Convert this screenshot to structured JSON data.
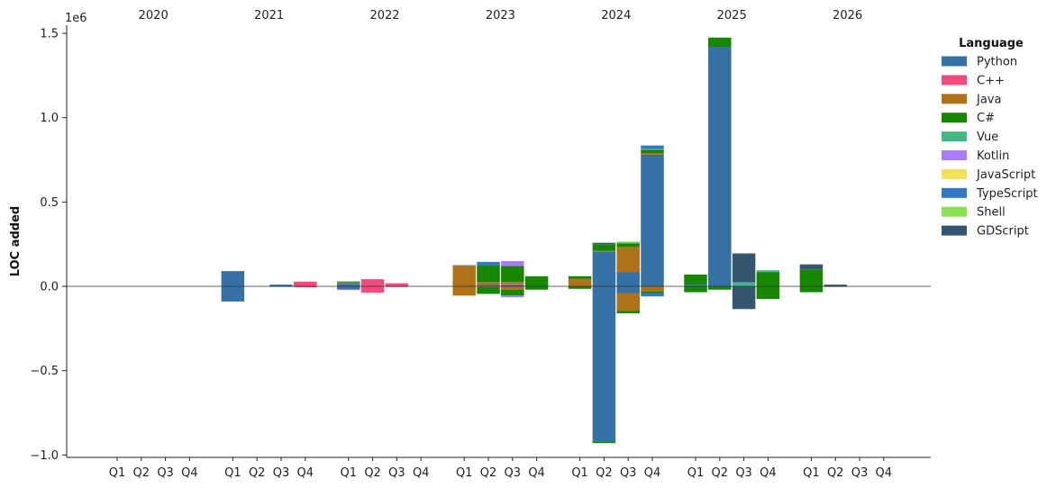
{
  "chart_data": {
    "type": "bar",
    "stacked": true,
    "title": "",
    "xlabel": "",
    "ylabel": "LOC added",
    "y_scale_label": "1e6",
    "ylim": [
      -1.0,
      1.5
    ],
    "yticks": [
      -1.0,
      -0.5,
      0.0,
      0.5,
      1.0,
      1.5
    ],
    "ytick_labels": [
      "−1.0",
      "−0.5",
      "0.0",
      "0.5",
      "1.0",
      "1.5"
    ],
    "years": [
      "2020",
      "2021",
      "2022",
      "2023",
      "2024",
      "2025",
      "2026"
    ],
    "quarters": [
      "Q1",
      "Q2",
      "Q3",
      "Q4"
    ],
    "legend_title": "Language",
    "legend_position": "upper-right-outside",
    "languages": [
      {
        "name": "Python",
        "color": "#3571a5"
      },
      {
        "name": "C++",
        "color": "#f34b7d"
      },
      {
        "name": "Java",
        "color": "#b07219"
      },
      {
        "name": "C#",
        "color": "#178600"
      },
      {
        "name": "Vue",
        "color": "#41b883"
      },
      {
        "name": "Kotlin",
        "color": "#a97bff"
      },
      {
        "name": "JavaScript",
        "color": "#f1e05a"
      },
      {
        "name": "TypeScript",
        "color": "#3178c6"
      },
      {
        "name": "Shell",
        "color": "#89e051"
      },
      {
        "name": "GDScript",
        "color": "#355570"
      }
    ],
    "bars": [
      {
        "period": "2021 Q1",
        "pos": {
          "Python": 0.09
        },
        "neg": {
          "Python": -0.09
        }
      },
      {
        "period": "2021 Q3",
        "pos": {
          "Python": 0.01
        },
        "neg": {
          "Python": -0.003
        }
      },
      {
        "period": "2021 Q4",
        "pos": {
          "C++": 0.028
        },
        "neg": {
          "C++": -0.006
        }
      },
      {
        "period": "2022 Q1",
        "pos": {
          "Python": 0.015,
          "C++": 0.004,
          "C#": 0.006,
          "Vue": 0.005
        },
        "neg": {
          "Python": -0.018,
          "Kotlin": -0.004
        }
      },
      {
        "period": "2022 Q2",
        "pos": {
          "C++": 0.042
        },
        "neg": {
          "C++": -0.038
        }
      },
      {
        "period": "2022 Q3",
        "pos": {
          "C++": 0.018
        },
        "neg": {
          "C++": -0.004
        }
      },
      {
        "period": "2023 Q1",
        "pos": {
          "Java": 0.122,
          "GDScript": 0.003
        },
        "neg": {
          "Java": -0.055
        }
      },
      {
        "period": "2023 Q2",
        "pos": {
          "Java": 0.015,
          "Python": 0.01,
          "C#": 0.1,
          "TypeScript": 0.02
        },
        "neg": {
          "Java": -0.005,
          "C#": -0.04
        }
      },
      {
        "period": "2023 Q3",
        "pos": {
          "Java": 0.01,
          "C++": 0.005,
          "Python": 0.01,
          "C#": 0.095,
          "Kotlin": 0.03
        },
        "neg": {
          "Java": -0.02,
          "Kotlin": -0.01,
          "C#": -0.035
        }
      },
      {
        "period": "2023 Q4",
        "pos": {
          "C#": 0.06
        },
        "neg": {
          "C#": -0.02
        }
      },
      {
        "period": "2024 Q1",
        "pos": {
          "Java": 0.045,
          "C#": 0.015
        },
        "neg": {
          "C#": -0.015
        }
      },
      {
        "period": "2024 Q2",
        "pos": {
          "Python": 0.205,
          "C#": 0.04,
          "Java": 0.005,
          "GDScript": 0.008
        },
        "neg": {
          "Python": -0.92,
          "C#": -0.01
        }
      },
      {
        "period": "2024 Q3",
        "pos": {
          "Python": 0.085,
          "Java": 0.15,
          "Shell": 0.005,
          "C#": 0.02,
          "Vue": 0.005
        },
        "neg": {
          "Python": -0.04,
          "Java": -0.105,
          "C#": -0.015
        }
      },
      {
        "period": "2024 Q4",
        "pos": {
          "Python": 0.78,
          "Java": 0.01,
          "C#": 0.02,
          "Vue": 0.005,
          "TypeScript": 0.02
        },
        "neg": {
          "Java": -0.03,
          "C#": -0.01,
          "TypeScript": -0.02
        }
      },
      {
        "period": "2025 Q1",
        "pos": {
          "Python": 0.01,
          "C#": 0.06
        },
        "neg": {
          "C#": -0.035
        }
      },
      {
        "period": "2025 Q2",
        "pos": {
          "Python": 1.42,
          "C#": 0.055
        },
        "neg": {
          "C#": -0.02
        }
      },
      {
        "period": "2025 Q3",
        "pos": {
          "Vue": 0.02,
          "TypeScript": 0.005,
          "GDScript": 0.17
        },
        "neg": {
          "GDScript": -0.135
        }
      },
      {
        "period": "2025 Q4",
        "pos": {
          "Vue": 0.01,
          "C#": 0.085
        },
        "neg": {
          "C#": -0.075
        }
      },
      {
        "period": "2026 Q1",
        "pos": {
          "C#": 0.1,
          "GDScript": 0.03
        },
        "neg": {
          "C#": -0.035
        }
      },
      {
        "period": "2026 Q2",
        "pos": {
          "GDScript": 0.01
        },
        "neg": {
          "GDScript": -0.003
        }
      }
    ]
  }
}
